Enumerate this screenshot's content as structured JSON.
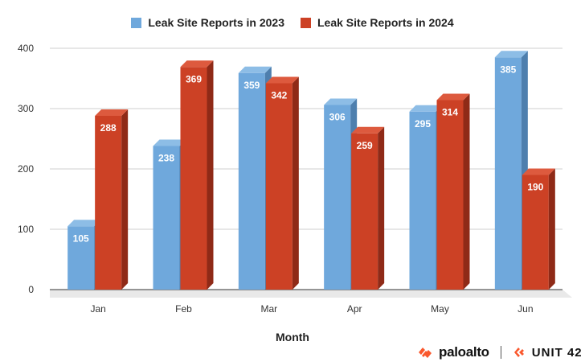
{
  "legend": {
    "s2023": "Leak Site Reports in 2023",
    "s2024": "Leak Site Reports in 2024"
  },
  "colors": {
    "s2023": "#6fa8dc",
    "s2023_side": "#4e7fae",
    "s2023_top": "#8dbde6",
    "s2024": "#cc4125",
    "s2024_side": "#8f2a17",
    "s2024_top": "#dd5a3e"
  },
  "chart_data": {
    "type": "bar",
    "categories": [
      "Jan",
      "Feb",
      "Mar",
      "Apr",
      "May",
      "Jun"
    ],
    "series": [
      {
        "name": "Leak Site Reports in 2023",
        "values": [
          105,
          238,
          359,
          306,
          295,
          385
        ]
      },
      {
        "name": "Leak Site Reports in 2024",
        "values": [
          288,
          369,
          342,
          259,
          314,
          190
        ]
      }
    ],
    "xlabel": "Month",
    "ylabel": "",
    "ylim": [
      0,
      400
    ],
    "yticks": [
      0,
      100,
      200,
      300,
      400
    ],
    "grid": true,
    "legend_position": "top-center"
  },
  "branding": {
    "left": "paloalto",
    "right": "UNIT 42"
  }
}
